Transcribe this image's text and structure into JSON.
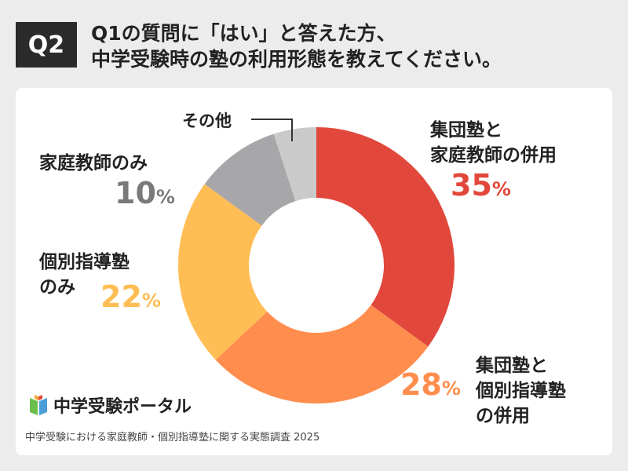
{
  "header": {
    "badge": "Q2",
    "question_line1": "Q1の質問に「はい」と答えた方、",
    "question_line2": "中学受験時の塾の利用形態を教えてください。"
  },
  "chart_data": {
    "type": "pie",
    "categories": [
      "集団塾と家庭教師の併用",
      "集団塾と個別指導塾の併用",
      "個別指導塾のみ",
      "家庭教師のみ",
      "その他"
    ],
    "values": [
      35,
      28,
      22,
      10,
      5
    ],
    "unit": "%",
    "colors": [
      "#e2473b",
      "#ff8d4d",
      "#ffbe55",
      "#a7a6a9",
      "#cacaca"
    ],
    "labels": [
      {
        "lines": [
          "集団塾と",
          "家庭教師の併用"
        ],
        "value": "35",
        "unit": "%",
        "color": "#e2473b"
      },
      {
        "lines": [
          "集団塾と",
          "個別指導塾",
          "の併用"
        ],
        "value": "28",
        "unit": "%",
        "color": "#ff8d4d"
      },
      {
        "lines": [
          "個別指導塾",
          "のみ"
        ],
        "value": "22",
        "unit": "%",
        "color": "#ffbe55"
      },
      {
        "lines": [
          "家庭教師のみ"
        ],
        "value": "10",
        "unit": "%",
        "color": "#7a7a7a"
      },
      {
        "lines": [
          "その他"
        ],
        "value": "",
        "unit": "",
        "color": "#222222"
      }
    ]
  },
  "brand": {
    "logo_icon": "book-icon",
    "name": "中学受験ポータル"
  },
  "source": "中学受験における家庭教師・個別指導塾に関する実態調査 2025"
}
